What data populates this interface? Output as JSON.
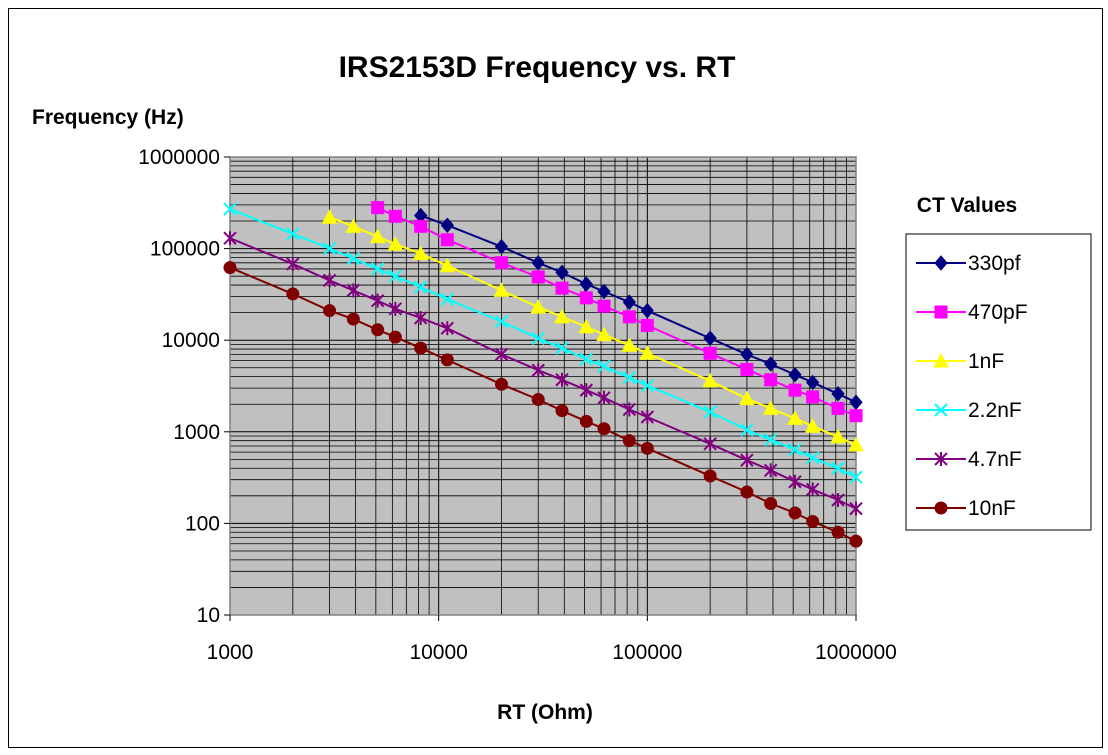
{
  "chart_data": {
    "type": "line",
    "title": "IRS2153D Frequency vs. RT",
    "xlabel": "RT (Ohm)",
    "ylabel": "Frequency (Hz)",
    "xscale": "log",
    "yscale": "log",
    "xlim": [
      1000,
      1000000
    ],
    "ylim": [
      10,
      1000000
    ],
    "x_ticks": [
      "1000",
      "10000",
      "100000",
      "1000000"
    ],
    "y_ticks": [
      "10",
      "100",
      "1000",
      "10000",
      "100000",
      "1000000"
    ],
    "grid": true,
    "plot_background": "#c0c0c0",
    "legend": {
      "title": "CT Values",
      "position": "right"
    },
    "series": [
      {
        "name": "330pf",
        "color": "#000080",
        "marker": "diamond",
        "points": [
          [
            8200,
            230000
          ],
          [
            11000,
            180000
          ],
          [
            20000,
            105000
          ],
          [
            30000,
            70000
          ],
          [
            39000,
            55000
          ],
          [
            51000,
            41000
          ],
          [
            62000,
            34000
          ],
          [
            82000,
            26000
          ],
          [
            100000,
            21000
          ],
          [
            200000,
            10500
          ],
          [
            300000,
            7000
          ],
          [
            390000,
            5500
          ],
          [
            510000,
            4200
          ],
          [
            620000,
            3450
          ],
          [
            820000,
            2600
          ],
          [
            1000000,
            2100
          ]
        ]
      },
      {
        "name": "470pF",
        "color": "#ff00ff",
        "marker": "square",
        "points": [
          [
            5100,
            280000
          ],
          [
            6200,
            225000
          ],
          [
            8200,
            175000
          ],
          [
            11000,
            125000
          ],
          [
            20000,
            70000
          ],
          [
            30000,
            49000
          ],
          [
            39000,
            37000
          ],
          [
            51000,
            29000
          ],
          [
            62000,
            23500
          ],
          [
            82000,
            18000
          ],
          [
            100000,
            14500
          ],
          [
            200000,
            7200
          ],
          [
            300000,
            4800
          ],
          [
            390000,
            3700
          ],
          [
            510000,
            2850
          ],
          [
            620000,
            2400
          ],
          [
            820000,
            1800
          ],
          [
            1000000,
            1500
          ]
        ]
      },
      {
        "name": "1nF",
        "color": "#ffff00",
        "marker": "triangle",
        "points": [
          [
            3000,
            220000
          ],
          [
            3900,
            175000
          ],
          [
            5100,
            135000
          ],
          [
            6200,
            112000
          ],
          [
            8200,
            88000
          ],
          [
            11000,
            65000
          ],
          [
            20000,
            35000
          ],
          [
            30000,
            23000
          ],
          [
            39000,
            18000
          ],
          [
            51000,
            14000
          ],
          [
            62000,
            11500
          ],
          [
            82000,
            8800
          ],
          [
            100000,
            7200
          ],
          [
            200000,
            3600
          ],
          [
            300000,
            2300
          ],
          [
            390000,
            1800
          ],
          [
            510000,
            1400
          ],
          [
            620000,
            1150
          ],
          [
            820000,
            880
          ],
          [
            1000000,
            720
          ]
        ]
      },
      {
        "name": "2.2nF",
        "color": "#00ffff",
        "marker": "x",
        "points": [
          [
            1000,
            270000
          ],
          [
            2000,
            145000
          ],
          [
            3000,
            100000
          ],
          [
            3900,
            78000
          ],
          [
            5100,
            60000
          ],
          [
            6200,
            50000
          ],
          [
            8200,
            38000
          ],
          [
            11000,
            28000
          ],
          [
            20000,
            16000
          ],
          [
            30000,
            10500
          ],
          [
            39000,
            8200
          ],
          [
            51000,
            6200
          ],
          [
            62000,
            5200
          ],
          [
            82000,
            3900
          ],
          [
            100000,
            3200
          ],
          [
            200000,
            1650
          ],
          [
            300000,
            1050
          ],
          [
            390000,
            820
          ],
          [
            510000,
            640
          ],
          [
            620000,
            520
          ],
          [
            820000,
            400
          ],
          [
            1000000,
            320
          ]
        ]
      },
      {
        "name": "4.7nF",
        "color": "#800080",
        "marker": "asterisk",
        "points": [
          [
            1000,
            130000
          ],
          [
            2000,
            68000
          ],
          [
            3000,
            45000
          ],
          [
            3900,
            35000
          ],
          [
            5100,
            27000
          ],
          [
            6200,
            22000
          ],
          [
            8200,
            17500
          ],
          [
            11000,
            13500
          ],
          [
            20000,
            7000
          ],
          [
            30000,
            4700
          ],
          [
            39000,
            3700
          ],
          [
            51000,
            2850
          ],
          [
            62000,
            2350
          ],
          [
            82000,
            1750
          ],
          [
            100000,
            1450
          ],
          [
            200000,
            740
          ],
          [
            300000,
            490
          ],
          [
            390000,
            380
          ],
          [
            510000,
            285
          ],
          [
            620000,
            235
          ],
          [
            820000,
            180
          ],
          [
            1000000,
            145
          ]
        ]
      },
      {
        "name": "10nF",
        "color": "#800000",
        "marker": "circle",
        "points": [
          [
            1000,
            62000
          ],
          [
            2000,
            32000
          ],
          [
            3000,
            21000
          ],
          [
            3900,
            17000
          ],
          [
            5100,
            13000
          ],
          [
            6200,
            10800
          ],
          [
            8200,
            8200
          ],
          [
            11000,
            6100
          ],
          [
            20000,
            3300
          ],
          [
            30000,
            2250
          ],
          [
            39000,
            1700
          ],
          [
            51000,
            1300
          ],
          [
            62000,
            1080
          ],
          [
            82000,
            800
          ],
          [
            100000,
            660
          ],
          [
            200000,
            330
          ],
          [
            300000,
            220
          ],
          [
            390000,
            165
          ],
          [
            510000,
            130
          ],
          [
            620000,
            105
          ],
          [
            820000,
            80
          ],
          [
            1000000,
            64
          ]
        ]
      }
    ]
  }
}
